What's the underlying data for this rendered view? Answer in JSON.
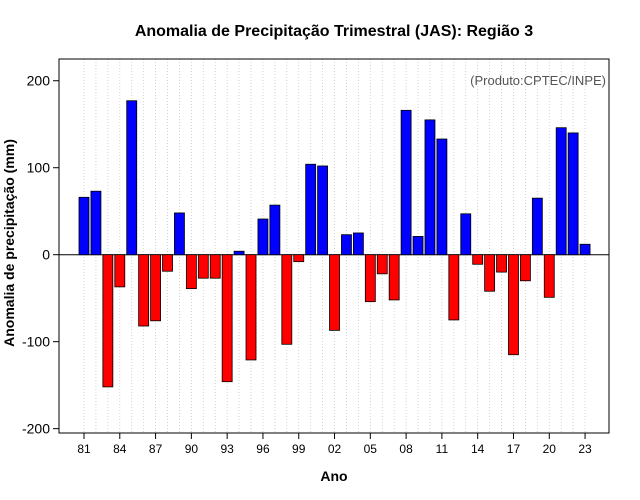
{
  "chart_data": {
    "type": "bar",
    "title": "Anomalia de Precipitação Trimestral (JAS): Região 3",
    "annotation": "(Produto:CPTEC/INPE)",
    "xlabel": "Ano",
    "ylabel": "Anomalia de precipitação (mm)",
    "ylim": [
      -205,
      225
    ],
    "yticks": [
      -200,
      -100,
      0,
      100,
      200
    ],
    "grid": "vertical dotted",
    "positive_color": "#0000ff",
    "negative_color": "#ff0000",
    "categories": [
      "81",
      "82",
      "83",
      "84",
      "85",
      "86",
      "87",
      "88",
      "89",
      "90",
      "91",
      "92",
      "93",
      "94",
      "95",
      "96",
      "97",
      "98",
      "99",
      "00",
      "01",
      "02",
      "03",
      "04",
      "05",
      "06",
      "07",
      "08",
      "09",
      "10",
      "11",
      "12",
      "13",
      "14",
      "15",
      "16",
      "17",
      "18",
      "19",
      "20",
      "21",
      "22",
      "23"
    ],
    "tick_labels": [
      "81",
      "84",
      "87",
      "90",
      "93",
      "96",
      "99",
      "02",
      "05",
      "08",
      "11",
      "14",
      "17",
      "20",
      "23"
    ],
    "values": [
      66,
      73,
      -152,
      -37,
      177,
      -82,
      -76,
      -19,
      48,
      -39,
      -27,
      -27,
      -146,
      4,
      -121,
      41,
      57,
      -103,
      -8,
      104,
      102,
      -87,
      23,
      25,
      -54,
      -22,
      -52,
      166,
      21,
      155,
      133,
      -75,
      47,
      -11,
      -42,
      -20,
      -115,
      -30,
      65,
      -49,
      146,
      140,
      12
    ]
  }
}
